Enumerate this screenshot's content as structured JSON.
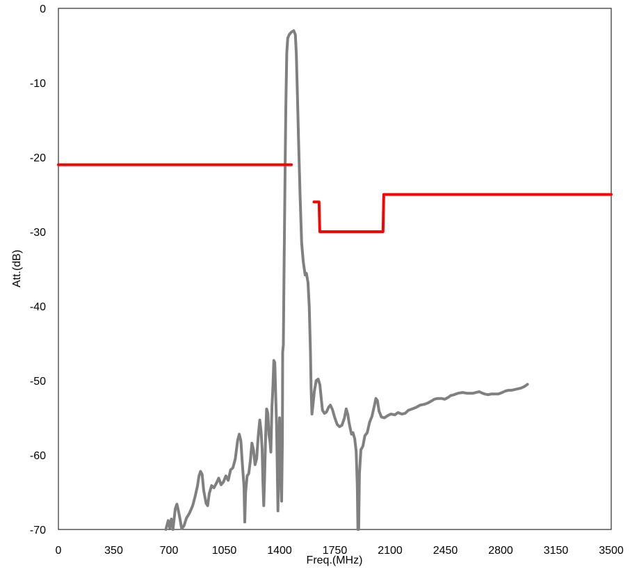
{
  "chart_data": {
    "type": "line",
    "title": "",
    "xlabel": "Freq.(MHz)",
    "ylabel": "Att.(dB)",
    "xlim": [
      0,
      3500
    ],
    "ylim": [
      -70,
      0
    ],
    "x_ticks": [
      "0",
      "350",
      "700",
      "1050",
      "1400",
      "1750",
      "2100",
      "2450",
      "2800",
      "3150",
      "3500"
    ],
    "y_ticks": [
      "0",
      "-10",
      "-20",
      "-30",
      "-40",
      "-50",
      "-60",
      "-70"
    ],
    "grid": false,
    "legend": "none",
    "series": [
      {
        "color": "#808080",
        "points": [
          [
            680,
            -70
          ],
          [
            695,
            -68.8
          ],
          [
            705,
            -69.8
          ],
          [
            715,
            -68.6
          ],
          [
            725,
            -70
          ],
          [
            740,
            -67.2
          ],
          [
            750,
            -66.6
          ],
          [
            760,
            -67.5
          ],
          [
            770,
            -68.6
          ],
          [
            780,
            -69.9
          ],
          [
            795,
            -69.5
          ],
          [
            810,
            -68.5
          ],
          [
            830,
            -67.8
          ],
          [
            850,
            -66.8
          ],
          [
            865,
            -65.6
          ],
          [
            880,
            -64.2
          ],
          [
            890,
            -62.8
          ],
          [
            900,
            -62.2
          ],
          [
            910,
            -62.6
          ],
          [
            920,
            -64.8
          ],
          [
            935,
            -66.5
          ],
          [
            945,
            -66.8
          ],
          [
            955,
            -65.2
          ],
          [
            970,
            -64.1
          ],
          [
            985,
            -64.4
          ],
          [
            1000,
            -63.8
          ],
          [
            1015,
            -63.1
          ],
          [
            1030,
            -64.0
          ],
          [
            1045,
            -63.6
          ],
          [
            1060,
            -62.8
          ],
          [
            1075,
            -63.4
          ],
          [
            1090,
            -62.0
          ],
          [
            1105,
            -61.7
          ],
          [
            1120,
            -60.5
          ],
          [
            1135,
            -58.0
          ],
          [
            1145,
            -57.2
          ],
          [
            1155,
            -58.1
          ],
          [
            1165,
            -61.3
          ],
          [
            1175,
            -64.2
          ],
          [
            1180,
            -69.0
          ],
          [
            1185,
            -65.0
          ],
          [
            1195,
            -62.8
          ],
          [
            1205,
            -62.5
          ],
          [
            1215,
            -60.8
          ],
          [
            1225,
            -58.4
          ],
          [
            1235,
            -59.3
          ],
          [
            1245,
            -61.3
          ],
          [
            1255,
            -60.5
          ],
          [
            1265,
            -57.5
          ],
          [
            1275,
            -55.3
          ],
          [
            1283,
            -56.8
          ],
          [
            1290,
            -59.2
          ],
          [
            1295,
            -63.6
          ],
          [
            1300,
            -66.8
          ],
          [
            1305,
            -63.4
          ],
          [
            1312,
            -57.5
          ],
          [
            1318,
            -53.8
          ],
          [
            1326,
            -54.4
          ],
          [
            1333,
            -57.3
          ],
          [
            1340,
            -58.3
          ],
          [
            1345,
            -59.6
          ],
          [
            1352,
            -53.5
          ],
          [
            1358,
            -50.8
          ],
          [
            1364,
            -47.3
          ],
          [
            1370,
            -47.6
          ],
          [
            1376,
            -52.0
          ],
          [
            1381,
            -55.8
          ],
          [
            1386,
            -62.0
          ],
          [
            1390,
            -67.5
          ],
          [
            1395,
            -60.0
          ],
          [
            1400,
            -55.0
          ],
          [
            1405,
            -60.6
          ],
          [
            1410,
            -64.6
          ],
          [
            1413,
            -66.2
          ],
          [
            1418,
            -58.0
          ],
          [
            1420,
            -46.2
          ],
          [
            1424,
            -45.2
          ],
          [
            1428,
            -36.0
          ],
          [
            1432,
            -28.0
          ],
          [
            1436,
            -20.0
          ],
          [
            1440,
            -13.0
          ],
          [
            1446,
            -6.0
          ],
          [
            1452,
            -4.0
          ],
          [
            1462,
            -3.5
          ],
          [
            1475,
            -3.2
          ],
          [
            1490,
            -3.0
          ],
          [
            1500,
            -3.5
          ],
          [
            1506,
            -6.0
          ],
          [
            1512,
            -10.5
          ],
          [
            1520,
            -17.5
          ],
          [
            1530,
            -25.0
          ],
          [
            1540,
            -31.5
          ],
          [
            1550,
            -34.0
          ],
          [
            1562,
            -35.8
          ],
          [
            1570,
            -35.6
          ],
          [
            1580,
            -36.8
          ],
          [
            1588,
            -40.0
          ],
          [
            1595,
            -45.5
          ],
          [
            1600,
            -51.0
          ],
          [
            1605,
            -54.5
          ],
          [
            1612,
            -53.2
          ],
          [
            1620,
            -51.5
          ],
          [
            1632,
            -50.0
          ],
          [
            1645,
            -49.8
          ],
          [
            1656,
            -50.6
          ],
          [
            1665,
            -52.6
          ],
          [
            1672,
            -54.0
          ],
          [
            1685,
            -54.4
          ],
          [
            1698,
            -54.2
          ],
          [
            1710,
            -53.6
          ],
          [
            1722,
            -53.3
          ],
          [
            1735,
            -53.9
          ],
          [
            1750,
            -55.0
          ],
          [
            1765,
            -55.9
          ],
          [
            1780,
            -56.2
          ],
          [
            1795,
            -56.0
          ],
          [
            1810,
            -55.1
          ],
          [
            1822,
            -53.8
          ],
          [
            1832,
            -54.5
          ],
          [
            1840,
            -55.6
          ],
          [
            1848,
            -56.5
          ],
          [
            1856,
            -57.2
          ],
          [
            1865,
            -57.0
          ],
          [
            1876,
            -57.8
          ],
          [
            1885,
            -59.5
          ],
          [
            1892,
            -64.0
          ],
          [
            1896,
            -70.0
          ],
          [
            1901,
            -70.0
          ],
          [
            1906,
            -62.5
          ],
          [
            1915,
            -59.3
          ],
          [
            1928,
            -58.8
          ],
          [
            1940,
            -57.4
          ],
          [
            1955,
            -57.0
          ],
          [
            1970,
            -55.6
          ],
          [
            1985,
            -54.8
          ],
          [
            2000,
            -53.4
          ],
          [
            2010,
            -52.4
          ],
          [
            2020,
            -52.7
          ],
          [
            2030,
            -54.1
          ],
          [
            2045,
            -54.9
          ],
          [
            2065,
            -55.0
          ],
          [
            2085,
            -54.7
          ],
          [
            2105,
            -54.5
          ],
          [
            2130,
            -54.6
          ],
          [
            2150,
            -54.3
          ],
          [
            2175,
            -54.5
          ],
          [
            2195,
            -54.4
          ],
          [
            2215,
            -54.0
          ],
          [
            2240,
            -53.8
          ],
          [
            2265,
            -53.6
          ],
          [
            2290,
            -53.3
          ],
          [
            2315,
            -53.2
          ],
          [
            2340,
            -53.0
          ],
          [
            2365,
            -52.7
          ],
          [
            2380,
            -52.5
          ],
          [
            2400,
            -52.4
          ],
          [
            2425,
            -52.4
          ],
          [
            2445,
            -52.5
          ],
          [
            2465,
            -52.3
          ],
          [
            2485,
            -52.0
          ],
          [
            2505,
            -51.9
          ],
          [
            2530,
            -51.7
          ],
          [
            2560,
            -51.6
          ],
          [
            2585,
            -51.7
          ],
          [
            2605,
            -51.7
          ],
          [
            2625,
            -51.7
          ],
          [
            2645,
            -51.6
          ],
          [
            2665,
            -51.5
          ],
          [
            2685,
            -51.7
          ],
          [
            2700,
            -51.8
          ],
          [
            2720,
            -51.9
          ],
          [
            2740,
            -51.8
          ],
          [
            2760,
            -51.8
          ],
          [
            2785,
            -51.8
          ],
          [
            2810,
            -51.6
          ],
          [
            2830,
            -51.4
          ],
          [
            2850,
            -51.3
          ],
          [
            2870,
            -51.3
          ],
          [
            2890,
            -51.2
          ],
          [
            2910,
            -51.1
          ],
          [
            2930,
            -51.0
          ],
          [
            2950,
            -50.8
          ],
          [
            2970,
            -50.5
          ]
        ]
      },
      {
        "color": "#ff0000",
        "points": [
          [
            0,
            -21
          ],
          [
            1475,
            -21
          ],
          null,
          [
            1618,
            -26
          ],
          [
            1650,
            -26
          ],
          [
            1655,
            -30
          ],
          [
            2055,
            -30
          ],
          [
            2060,
            -25
          ],
          [
            3500,
            -25
          ]
        ]
      }
    ]
  }
}
